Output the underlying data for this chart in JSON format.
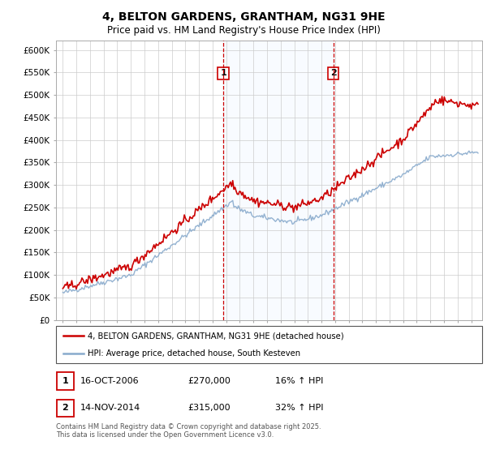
{
  "title": "4, BELTON GARDENS, GRANTHAM, NG31 9HE",
  "subtitle": "Price paid vs. HM Land Registry's House Price Index (HPI)",
  "ylabel_ticks": [
    "£0",
    "£50K",
    "£100K",
    "£150K",
    "£200K",
    "£250K",
    "£300K",
    "£350K",
    "£400K",
    "£450K",
    "£500K",
    "£550K",
    "£600K"
  ],
  "ytick_values": [
    0,
    50000,
    100000,
    150000,
    200000,
    250000,
    300000,
    350000,
    400000,
    450000,
    500000,
    550000,
    600000
  ],
  "sale1_date": "16-OCT-2006",
  "sale1_price": 270000,
  "sale1_pct": "16%",
  "sale2_date": "14-NOV-2014",
  "sale2_price": 315000,
  "sale2_pct": "32%",
  "legend_red": "4, BELTON GARDENS, GRANTHAM, NG31 9HE (detached house)",
  "legend_blue": "HPI: Average price, detached house, South Kesteven",
  "footer": "Contains HM Land Registry data © Crown copyright and database right 2025.\nThis data is licensed under the Open Government Licence v3.0.",
  "red_color": "#cc0000",
  "blue_color": "#88aacc",
  "vline_color": "#cc0000",
  "span_color": "#ddeeff",
  "title_fontsize": 10,
  "subtitle_fontsize": 8.5,
  "sale1_x": 2006.79,
  "sale2_x": 2014.87,
  "xmin": 1994.5,
  "xmax": 2025.8,
  "ymin": 0,
  "ymax": 620000
}
